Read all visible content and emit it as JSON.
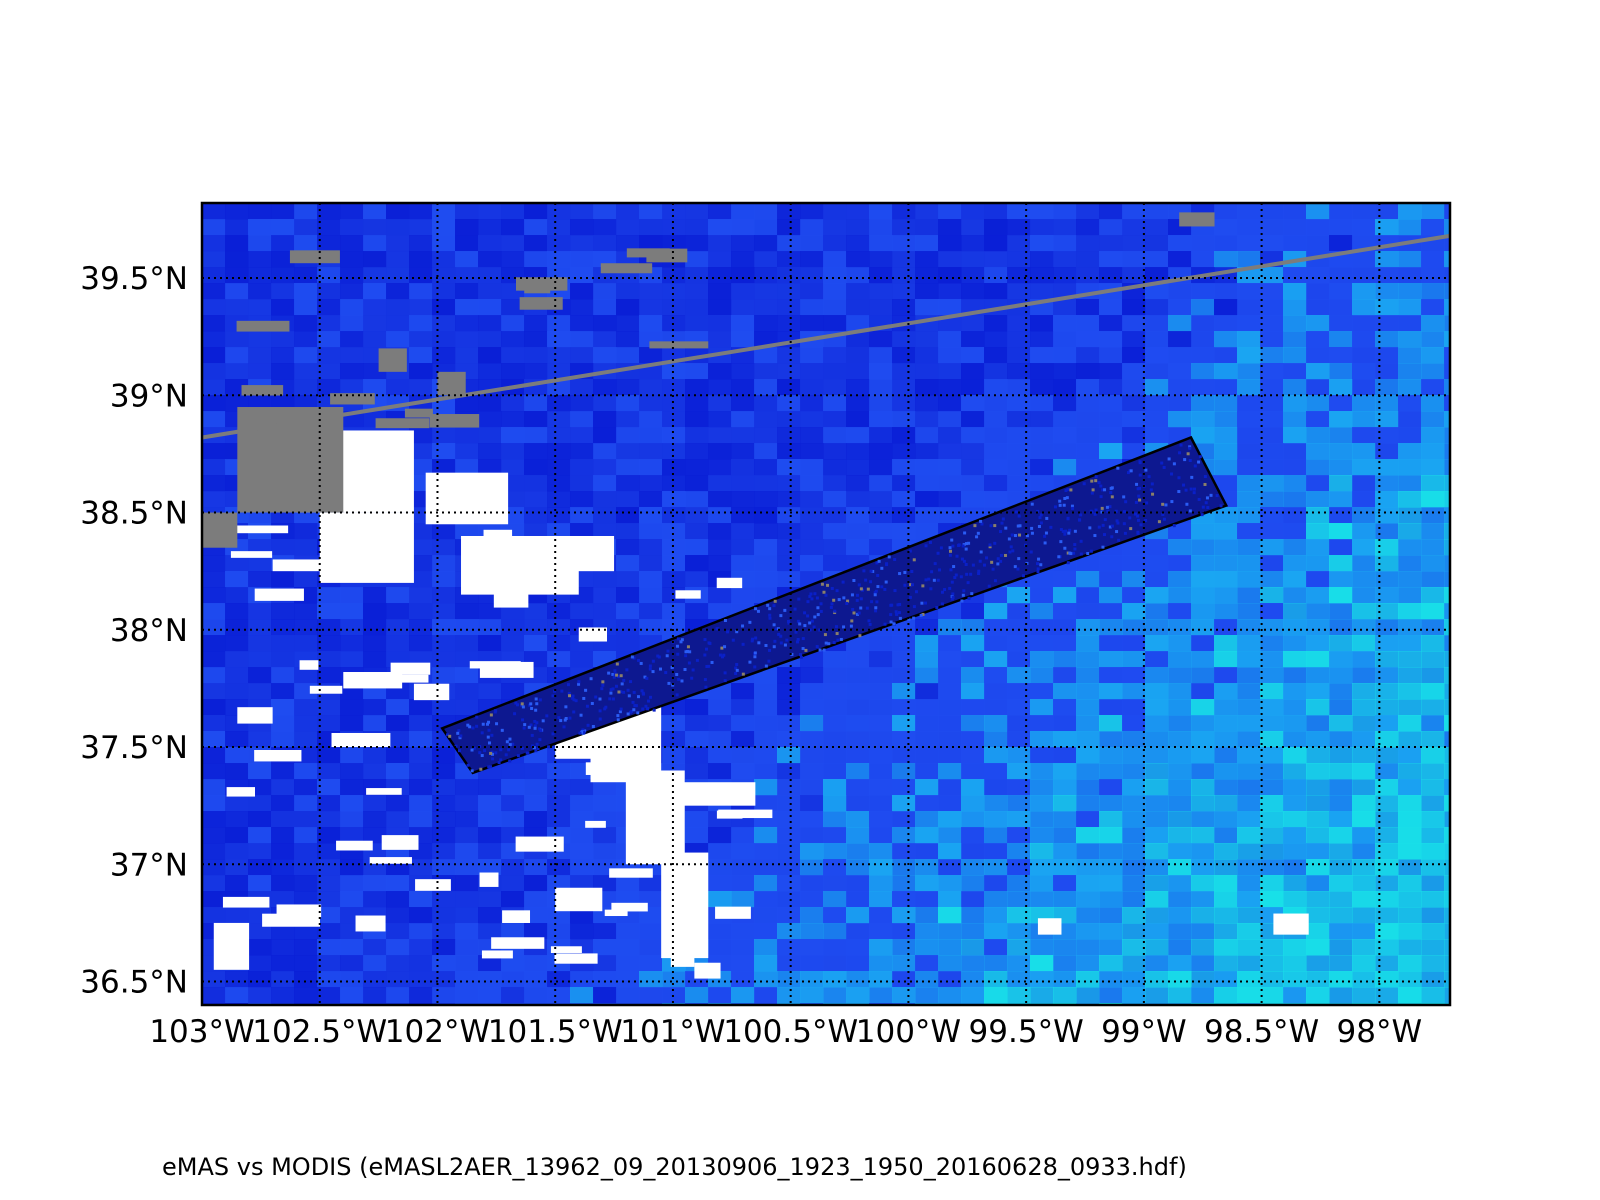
{
  "map": {
    "lat_labels": [
      "39.5°N",
      "39°N",
      "38.5°N",
      "38°N",
      "37.5°N",
      "37°N",
      "36.5°N"
    ],
    "lat_values": [
      39.5,
      39.0,
      38.5,
      38.0,
      37.5,
      37.0,
      36.5
    ],
    "lon_labels": [
      "103°W",
      "102.5°W",
      "102°W",
      "101.5°W",
      "101°W",
      "100.5°W",
      "100°W",
      "99.5°W",
      "99°W",
      "98.5°W",
      "98°W"
    ],
    "lon_values": [
      -103.0,
      -102.5,
      -102.0,
      -101.5,
      -101.0,
      -100.5,
      -100.0,
      -99.5,
      -99.0,
      -98.5,
      -98.0
    ],
    "extent": {
      "lon_min": -103.0,
      "lon_max": -97.7,
      "lat_min": 36.4,
      "lat_max": 39.82
    },
    "swath_corners": [
      [
        -101.98,
        37.58
      ],
      [
        -101.85,
        37.39
      ],
      [
        -98.65,
        38.53
      ],
      [
        -98.8,
        38.82
      ]
    ],
    "colors": {
      "deep_blue": "#0a1fd6",
      "mid_blue": "#1f4cf0",
      "light_blue": "#1aa6f2",
      "cyan": "#18e0e8",
      "no_data_gray": "#7c7c7c",
      "frame": "#000000"
    }
  },
  "caption": "eMAS vs MODIS (eMASL2AER_13962_09_20130906_1923_1950_20160628_0933.hdf)"
}
